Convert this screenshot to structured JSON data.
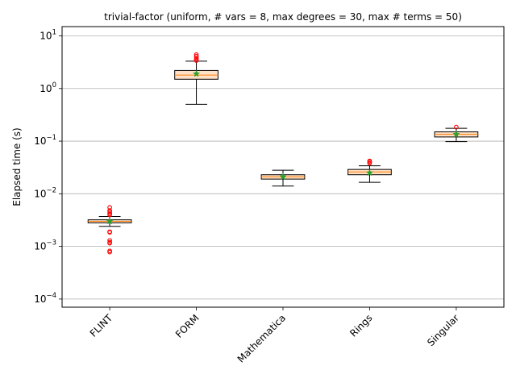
{
  "chart_data": {
    "type": "box",
    "title": "trivial-factor (uniform, # vars = 8, max degrees = 30, max # terms = 50)",
    "xlabel": "",
    "ylabel": "Elapsed time (s)",
    "yscale": "log",
    "ylim": [
      7e-05,
      15
    ],
    "yticks": [
      {
        "value": 0.0001,
        "base": "10",
        "exp": "−4"
      },
      {
        "value": 0.001,
        "base": "10",
        "exp": "−3"
      },
      {
        "value": 0.01,
        "base": "10",
        "exp": "−2"
      },
      {
        "value": 0.1,
        "base": "10",
        "exp": "−1"
      },
      {
        "value": 1,
        "base": "10",
        "exp": "0"
      },
      {
        "value": 10,
        "base": "10",
        "exp": "1"
      }
    ],
    "grid": "horizontal",
    "categories": [
      "FLINT",
      "FORM",
      "Mathematica",
      "Rings",
      "Singular"
    ],
    "boxes": [
      {
        "whisker_low": 0.0024,
        "q1": 0.0028,
        "median": 0.003,
        "q3": 0.0032,
        "whisker_high": 0.0037,
        "mean": 0.003,
        "outliers": [
          0.0055,
          0.0048,
          0.0045,
          0.0042,
          0.004,
          0.0019,
          0.00185,
          0.0013,
          0.0012,
          0.00115,
          0.00082,
          0.00078
        ]
      },
      {
        "whisker_low": 0.5,
        "q1": 1.5,
        "median": 1.8,
        "q3": 2.2,
        "whisker_high": 3.3,
        "mean": 1.9,
        "outliers": [
          4.4,
          4.1,
          3.8,
          3.6,
          3.4
        ]
      },
      {
        "whisker_low": 0.014,
        "q1": 0.019,
        "median": 0.021,
        "q3": 0.023,
        "whisker_high": 0.028,
        "mean": 0.021,
        "outliers": []
      },
      {
        "whisker_low": 0.0165,
        "q1": 0.023,
        "median": 0.026,
        "q3": 0.029,
        "whisker_high": 0.034,
        "mean": 0.025,
        "outliers": [
          0.042,
          0.04,
          0.038
        ]
      },
      {
        "whisker_low": 0.098,
        "q1": 0.12,
        "median": 0.135,
        "q3": 0.15,
        "whisker_high": 0.175,
        "mean": 0.135,
        "outliers": [
          0.185
        ]
      }
    ],
    "colors": {
      "box_edge": "#000000",
      "box_fill": "#fde0c5",
      "median": "#ff7f0e",
      "mean": "#2ca02c",
      "outlier": "#ff0000",
      "grid": "#b0b0b0"
    }
  }
}
